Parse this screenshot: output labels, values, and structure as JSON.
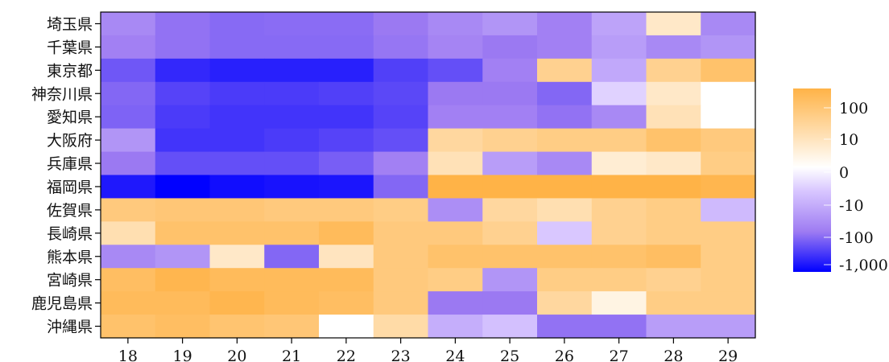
{
  "chart_data": {
    "type": "heatmap",
    "title": "",
    "xlabel": "",
    "ylabel": "",
    "x": [
      "18",
      "19",
      "20",
      "21",
      "22",
      "23",
      "24",
      "25",
      "26",
      "27",
      "28",
      "29"
    ],
    "y": [
      "埼玉県",
      "千葉県",
      "東京都",
      "神奈川県",
      "愛知県",
      "大阪府",
      "兵庫県",
      "福岡県",
      "佐賀県",
      "長崎県",
      "熊本県",
      "宮崎県",
      "鹿児島県",
      "沖縄県"
    ],
    "values": [
      [
        -30,
        -60,
        -75,
        -70,
        -70,
        -50,
        -30,
        -20,
        -40,
        -12,
        3,
        -30
      ],
      [
        -40,
        -60,
        -75,
        -75,
        -75,
        -55,
        -35,
        -50,
        -40,
        -15,
        -30,
        -20
      ],
      [
        -120,
        -400,
        -500,
        -500,
        -500,
        -220,
        -150,
        -40,
        15,
        -10,
        15,
        40
      ],
      [
        -80,
        -200,
        -250,
        -250,
        -220,
        -180,
        -50,
        -50,
        -80,
        -2,
        3,
        0
      ],
      [
        -90,
        -250,
        -300,
        -300,
        -300,
        -200,
        -40,
        -40,
        -60,
        -30,
        5,
        0
      ],
      [
        -20,
        -300,
        -300,
        -250,
        -200,
        -150,
        10,
        15,
        20,
        20,
        40,
        25
      ],
      [
        -50,
        -150,
        -150,
        -150,
        -100,
        -40,
        5,
        -15,
        -30,
        2,
        3,
        20
      ],
      [
        -600,
        -1100,
        -800,
        -700,
        -650,
        -80,
        150,
        150,
        150,
        150,
        150,
        80
      ],
      [
        25,
        30,
        30,
        25,
        25,
        20,
        -25,
        10,
        6,
        15,
        20,
        -5
      ],
      [
        6,
        40,
        40,
        40,
        60,
        25,
        25,
        15,
        -3,
        15,
        20,
        20
      ],
      [
        -30,
        -20,
        3,
        -80,
        4,
        25,
        40,
        40,
        40,
        40,
        50,
        20
      ],
      [
        50,
        80,
        60,
        60,
        60,
        25,
        20,
        -20,
        20,
        20,
        15,
        20
      ],
      [
        60,
        60,
        80,
        60,
        50,
        25,
        -50,
        -50,
        10,
        1,
        20,
        20
      ],
      [
        40,
        50,
        35,
        30,
        0,
        8,
        -8,
        -4,
        -60,
        -60,
        -15,
        -15
      ]
    ],
    "colorbar": {
      "ticks": [
        "100",
        "10",
        "0",
        "-10",
        "-100",
        "-1,000"
      ],
      "colors": {
        "positive": "#ffb347",
        "zero": "#ffffff",
        "negative": "#0000ff"
      }
    },
    "grid": false,
    "legend": "right"
  }
}
